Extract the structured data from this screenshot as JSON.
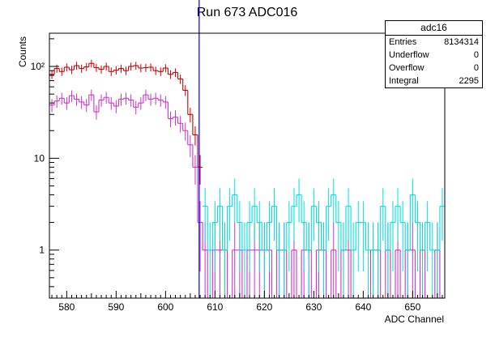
{
  "chart_data": {
    "type": "histogram",
    "title": "Run 673 ADC016",
    "xlabel": "ADC Channel",
    "ylabel": "Counts",
    "xlim": [
      576.5,
      656.5
    ],
    "ylim": [
      0.3,
      230
    ],
    "yscale": "log",
    "x_ticks": [
      580,
      590,
      600,
      610,
      620,
      630,
      640,
      650
    ],
    "y_ticks": [
      {
        "value": 1,
        "label": "1"
      },
      {
        "value": 10,
        "label": "10"
      },
      {
        "value": 100,
        "label": "10²"
      }
    ],
    "vertical_line": {
      "x": 606.8,
      "color": "#0000ff"
    },
    "series": [
      {
        "color": "#cc0000",
        "x": [
          577,
          578,
          579,
          580,
          581,
          582,
          583,
          584,
          585,
          586,
          587,
          588,
          589,
          590,
          591,
          592,
          593,
          594,
          595,
          596,
          597,
          598,
          599,
          600,
          601,
          602,
          603,
          604,
          605,
          606,
          607
        ],
        "values": [
          82,
          95,
          88,
          98,
          92,
          102,
          95,
          99,
          108,
          97,
          93,
          100,
          88,
          91,
          95,
          90,
          100,
          102,
          96,
          97,
          98,
          90,
          88,
          96,
          82,
          86,
          73,
          55,
          30,
          18,
          8
        ]
      },
      {
        "color": "#cc33cc",
        "x": [
          577,
          578,
          579,
          580,
          581,
          582,
          583,
          584,
          585,
          586,
          587,
          588,
          589,
          590,
          591,
          592,
          593,
          594,
          595,
          596,
          597,
          598,
          599,
          600,
          601,
          602,
          603,
          604,
          605,
          606,
          607,
          608,
          609,
          610,
          611,
          612,
          613,
          614,
          615,
          616,
          617,
          618,
          619,
          620,
          621,
          622,
          623,
          624,
          625,
          626,
          627,
          628,
          629,
          630,
          631,
          632,
          633,
          634,
          635,
          636,
          637,
          638,
          639,
          640,
          641,
          642,
          643,
          644,
          645,
          646,
          647,
          648,
          649,
          650,
          651,
          652,
          653,
          654,
          655,
          656
        ],
        "values": [
          38,
          42,
          45,
          40,
          48,
          44,
          41,
          38,
          49,
          32,
          43,
          46,
          40,
          37,
          44,
          45,
          43,
          36,
          40,
          49,
          44,
          45,
          43,
          41,
          27,
          28,
          24,
          20,
          14,
          8,
          2,
          1,
          0,
          1,
          1,
          1,
          0,
          1,
          1,
          0,
          1,
          1,
          1,
          1,
          1,
          0,
          1,
          1,
          0,
          1,
          0,
          1,
          1,
          0,
          1,
          1,
          0,
          1,
          0,
          1,
          1,
          0,
          0,
          0,
          0,
          1,
          1,
          0,
          1,
          0,
          1,
          0,
          1,
          1,
          0,
          1,
          0,
          0,
          1,
          0
        ]
      },
      {
        "color": "#00e0e0",
        "x": [
          608,
          609,
          610,
          611,
          612,
          613,
          614,
          615,
          616,
          617,
          618,
          619,
          620,
          621,
          622,
          623,
          624,
          625,
          626,
          627,
          628,
          629,
          630,
          631,
          632,
          633,
          634,
          635,
          636,
          637,
          638,
          639,
          640,
          641,
          642,
          643,
          644,
          645,
          646,
          647,
          648,
          649,
          650,
          651,
          652,
          653,
          654,
          655,
          656
        ],
        "values": [
          3,
          1,
          2,
          3,
          1,
          3,
          4,
          2,
          1,
          2,
          3,
          2,
          1,
          2,
          3,
          1,
          1,
          2,
          3,
          4,
          2,
          1,
          3,
          2,
          1,
          3,
          4,
          2,
          1,
          3,
          1,
          2,
          2,
          1,
          1,
          1,
          3,
          1,
          2,
          3,
          2,
          1,
          4,
          2,
          1,
          2,
          1,
          1,
          3
        ]
      }
    ]
  },
  "stats_box": {
    "title": "adc16",
    "rows": [
      {
        "label": "Entries",
        "value": "8134314"
      },
      {
        "label": "Underflow",
        "value": "0"
      },
      {
        "label": "Overflow",
        "value": "0"
      },
      {
        "label": "Integral",
        "value": "2295"
      }
    ]
  }
}
